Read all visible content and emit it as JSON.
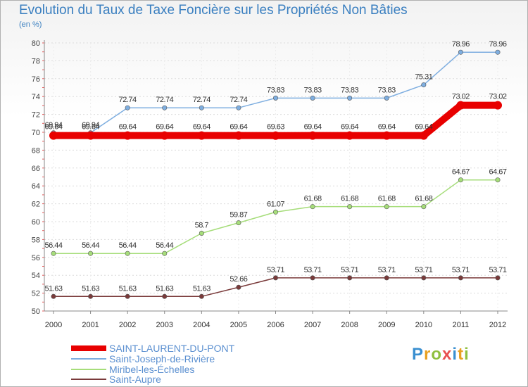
{
  "header": {
    "title": "Evolution du Taux de Taxe Foncière sur les Propriétés Non Bâties",
    "unit": "(en %)"
  },
  "chart_data": {
    "type": "line",
    "title": "Evolution du Taux de Taxe Foncière sur les Propriétés Non Bâties",
    "ylabel": "(en %)",
    "xlabel": "",
    "ylim": [
      50,
      80
    ],
    "yticks": [
      "50",
      "52",
      "54",
      "56",
      "58",
      "60",
      "62",
      "64",
      "66",
      "68",
      "70",
      "72",
      "74",
      "76",
      "78",
      "80"
    ],
    "categories": [
      "2000",
      "2001",
      "2002",
      "2003",
      "2004",
      "2005",
      "2006",
      "2007",
      "2008",
      "2009",
      "2010",
      "2011",
      "2012"
    ],
    "series": [
      {
        "name": "SAINT-LAURENT-DU-PONT",
        "color": "#e80000",
        "values": [
          69.64,
          69.64,
          69.64,
          69.64,
          69.64,
          69.64,
          69.63,
          69.64,
          69.64,
          69.64,
          69.64,
          73.02,
          73.02
        ],
        "labels": [
          "69.64",
          "69.64",
          "69.64",
          "69.64",
          "69.64",
          "69.64",
          "69.63",
          "69.64",
          "69.64",
          "69.64",
          "69.64",
          "73.02",
          "73.02"
        ]
      },
      {
        "name": "Saint-Joseph-de-Rivière",
        "color": "#7eaee0",
        "values": [
          69.94,
          69.94,
          72.74,
          72.74,
          72.74,
          72.74,
          73.83,
          73.83,
          73.83,
          73.83,
          75.31,
          78.96,
          78.96
        ],
        "labels": [
          "69.94",
          "69.94",
          "72.74",
          "72.74",
          "72.74",
          "72.74",
          "73.83",
          "73.83",
          "73.83",
          "73.83",
          "75.31",
          "78.96",
          "78.96"
        ]
      },
      {
        "name": "Miribel-les-Échelles",
        "color": "#a6dd7a",
        "values": [
          56.44,
          56.44,
          56.44,
          56.44,
          58.7,
          59.87,
          61.07,
          61.68,
          61.68,
          61.68,
          61.68,
          64.67,
          64.67
        ],
        "labels": [
          "56.44",
          "56.44",
          "56.44",
          "56.44",
          "58.7",
          "59.87",
          "61.07",
          "61.68",
          "61.68",
          "61.68",
          "61.68",
          "64.67",
          "64.67"
        ]
      },
      {
        "name": "Saint-Aupre",
        "color": "#7a3a3a",
        "values": [
          51.63,
          51.63,
          51.63,
          51.63,
          51.63,
          52.66,
          53.71,
          53.71,
          53.71,
          53.71,
          53.71,
          53.71,
          53.71
        ],
        "labels": [
          "51.63",
          "51.63",
          "51.63",
          "51.63",
          "51.63",
          "52.66",
          "53.71",
          "53.71",
          "53.71",
          "53.71",
          "53.71",
          "53.71",
          "53.71"
        ]
      }
    ]
  },
  "legend": {
    "items": [
      "SAINT-LAURENT-DU-PONT",
      "Saint-Joseph-de-Rivière",
      "Miribel-les-Échelles",
      "Saint-Aupre"
    ]
  },
  "logo": {
    "text": "Proxiti"
  }
}
